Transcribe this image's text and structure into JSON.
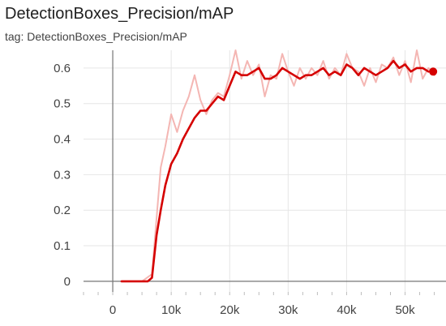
{
  "card": {
    "title": "DetectionBoxes_Precision/mAP",
    "tag_label": "tag: DetectionBoxes_Precision/mAP"
  },
  "chart_data": {
    "type": "line",
    "title": "DetectionBoxes_Precision/mAP",
    "xlabel": "",
    "ylabel": "",
    "xlim": [
      -5000,
      57000
    ],
    "ylim": [
      -0.03,
      0.65
    ],
    "x_ticks": [
      0,
      10000,
      20000,
      30000,
      40000,
      50000
    ],
    "x_tick_labels": [
      "0",
      "10k",
      "20k",
      "30k",
      "40k",
      "50k"
    ],
    "y_ticks": [
      0,
      0.1,
      0.2,
      0.3,
      0.4,
      0.5,
      0.6
    ],
    "y_tick_labels": [
      "0",
      "0.1",
      "0.2",
      "0.3",
      "0.4",
      "0.5",
      "0.6"
    ],
    "grid": true,
    "colors": {
      "smoothed": "#d50000",
      "raw": "#f4b6b3",
      "grid": "#e6e6e6",
      "zero_axis": "#757575"
    },
    "series": [
      {
        "role": "raw",
        "x": [
          1500,
          3000,
          5000,
          6700,
          8200,
          9000,
          10000,
          11000,
          12000,
          13000,
          14000,
          15000,
          16000,
          17000,
          18000,
          19000,
          20000,
          21000,
          22000,
          23000,
          24000,
          25000,
          26000,
          27000,
          28000,
          29000,
          30000,
          31000,
          32000,
          33000,
          34000,
          35000,
          36000,
          37000,
          38000,
          39000,
          40000,
          41000,
          42000,
          43000,
          44000,
          45000,
          46000,
          47000,
          48000,
          49000,
          50000,
          51000,
          52000,
          53000,
          54000,
          55000
        ],
        "y": [
          0,
          0,
          0,
          0.02,
          0.32,
          0.38,
          0.47,
          0.42,
          0.48,
          0.52,
          0.58,
          0.51,
          0.47,
          0.51,
          0.53,
          0.52,
          0.58,
          0.65,
          0.57,
          0.62,
          0.58,
          0.61,
          0.52,
          0.58,
          0.57,
          0.64,
          0.59,
          0.55,
          0.6,
          0.57,
          0.6,
          0.58,
          0.62,
          0.57,
          0.6,
          0.58,
          0.64,
          0.6,
          0.59,
          0.55,
          0.6,
          0.56,
          0.61,
          0.6,
          0.63,
          0.58,
          0.62,
          0.56,
          0.65,
          0.57,
          0.6,
          0.58
        ]
      },
      {
        "role": "smoothed",
        "x": [
          1500,
          3000,
          5000,
          6000,
          6700,
          7500,
          8200,
          9000,
          10000,
          11000,
          12000,
          13000,
          14000,
          15000,
          16000,
          17000,
          18000,
          19000,
          20000,
          21000,
          22000,
          23000,
          24000,
          25000,
          26000,
          27000,
          28000,
          29000,
          30000,
          31000,
          32000,
          33000,
          34000,
          35000,
          36000,
          37000,
          38000,
          39000,
          40000,
          41000,
          42000,
          43000,
          44000,
          45000,
          46000,
          47000,
          48000,
          49000,
          50000,
          51000,
          52000,
          53000,
          54000
        ],
        "y": [
          0,
          0,
          0,
          0,
          0.01,
          0.13,
          0.2,
          0.27,
          0.33,
          0.36,
          0.4,
          0.43,
          0.46,
          0.48,
          0.48,
          0.5,
          0.52,
          0.51,
          0.55,
          0.59,
          0.58,
          0.58,
          0.59,
          0.6,
          0.57,
          0.57,
          0.58,
          0.6,
          0.59,
          0.58,
          0.57,
          0.58,
          0.58,
          0.59,
          0.6,
          0.58,
          0.59,
          0.58,
          0.61,
          0.6,
          0.58,
          0.6,
          0.59,
          0.58,
          0.59,
          0.6,
          0.62,
          0.6,
          0.61,
          0.59,
          0.6,
          0.6,
          0.59
        ]
      }
    ],
    "current_point": {
      "x": 54800,
      "y": 0.59
    }
  }
}
